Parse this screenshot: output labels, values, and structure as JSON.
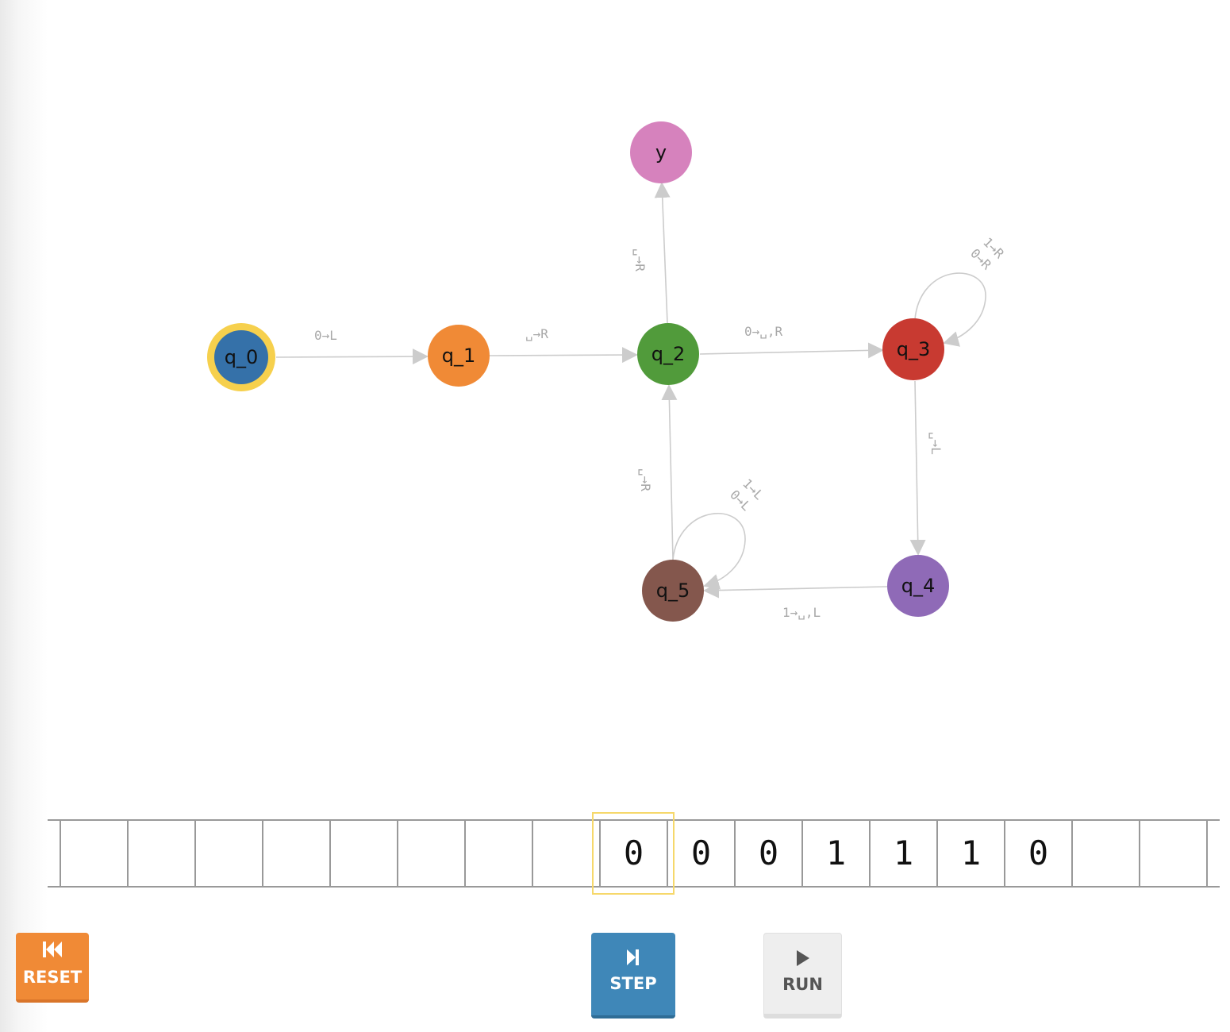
{
  "diagram": {
    "states": [
      {
        "id": "q_0",
        "label": "q_0",
        "color": "#3571a9",
        "start": true
      },
      {
        "id": "q_1",
        "label": "q_1",
        "color": "#f08a36"
      },
      {
        "id": "q_2",
        "label": "q_2",
        "color": "#519b3b"
      },
      {
        "id": "q_3",
        "label": "q_3",
        "color": "#c83a31"
      },
      {
        "id": "q_4",
        "label": "q_4",
        "color": "#8f6ab7"
      },
      {
        "id": "q_5",
        "label": "q_5",
        "color": "#84574d"
      },
      {
        "id": "y",
        "label": "y",
        "color": "#d682bd"
      }
    ],
    "transitions": [
      {
        "from": "q_0",
        "to": "q_1",
        "label": "0→L"
      },
      {
        "from": "q_1",
        "to": "q_2",
        "label": "␣→R"
      },
      {
        "from": "q_2",
        "to": "y",
        "label": "␣→R"
      },
      {
        "from": "q_2",
        "to": "q_3",
        "label": "0→␣,R"
      },
      {
        "from": "q_3",
        "to": "q_3",
        "label_1": "1→R",
        "label_2": "0→R"
      },
      {
        "from": "q_3",
        "to": "q_4",
        "label": "␣→L"
      },
      {
        "from": "q_4",
        "to": "q_5",
        "label": "1→␣,L"
      },
      {
        "from": "q_5",
        "to": "q_5",
        "label_1": "1→L",
        "label_2": "0→L"
      },
      {
        "from": "q_5",
        "to": "q_2",
        "label": "␣→R"
      }
    ],
    "highlight_color": "#f6d04d",
    "edge_color": "#cccccc"
  },
  "tape": {
    "cells": [
      "",
      "",
      "",
      "",
      "",
      "",
      "",
      "",
      "0",
      "0",
      "0",
      "1",
      "1",
      "1",
      "0",
      "",
      "",
      ""
    ],
    "head_index": 8,
    "head_color": "#f6d86b"
  },
  "controls": {
    "reset": {
      "label": "RESET",
      "icon": "skip-to-start-icon",
      "color": "#f08a36"
    },
    "step": {
      "label": "STEP",
      "icon": "step-forward-icon",
      "color": "#3f87b8"
    },
    "run": {
      "label": "RUN",
      "icon": "play-icon",
      "color": "#eeeeee"
    }
  }
}
